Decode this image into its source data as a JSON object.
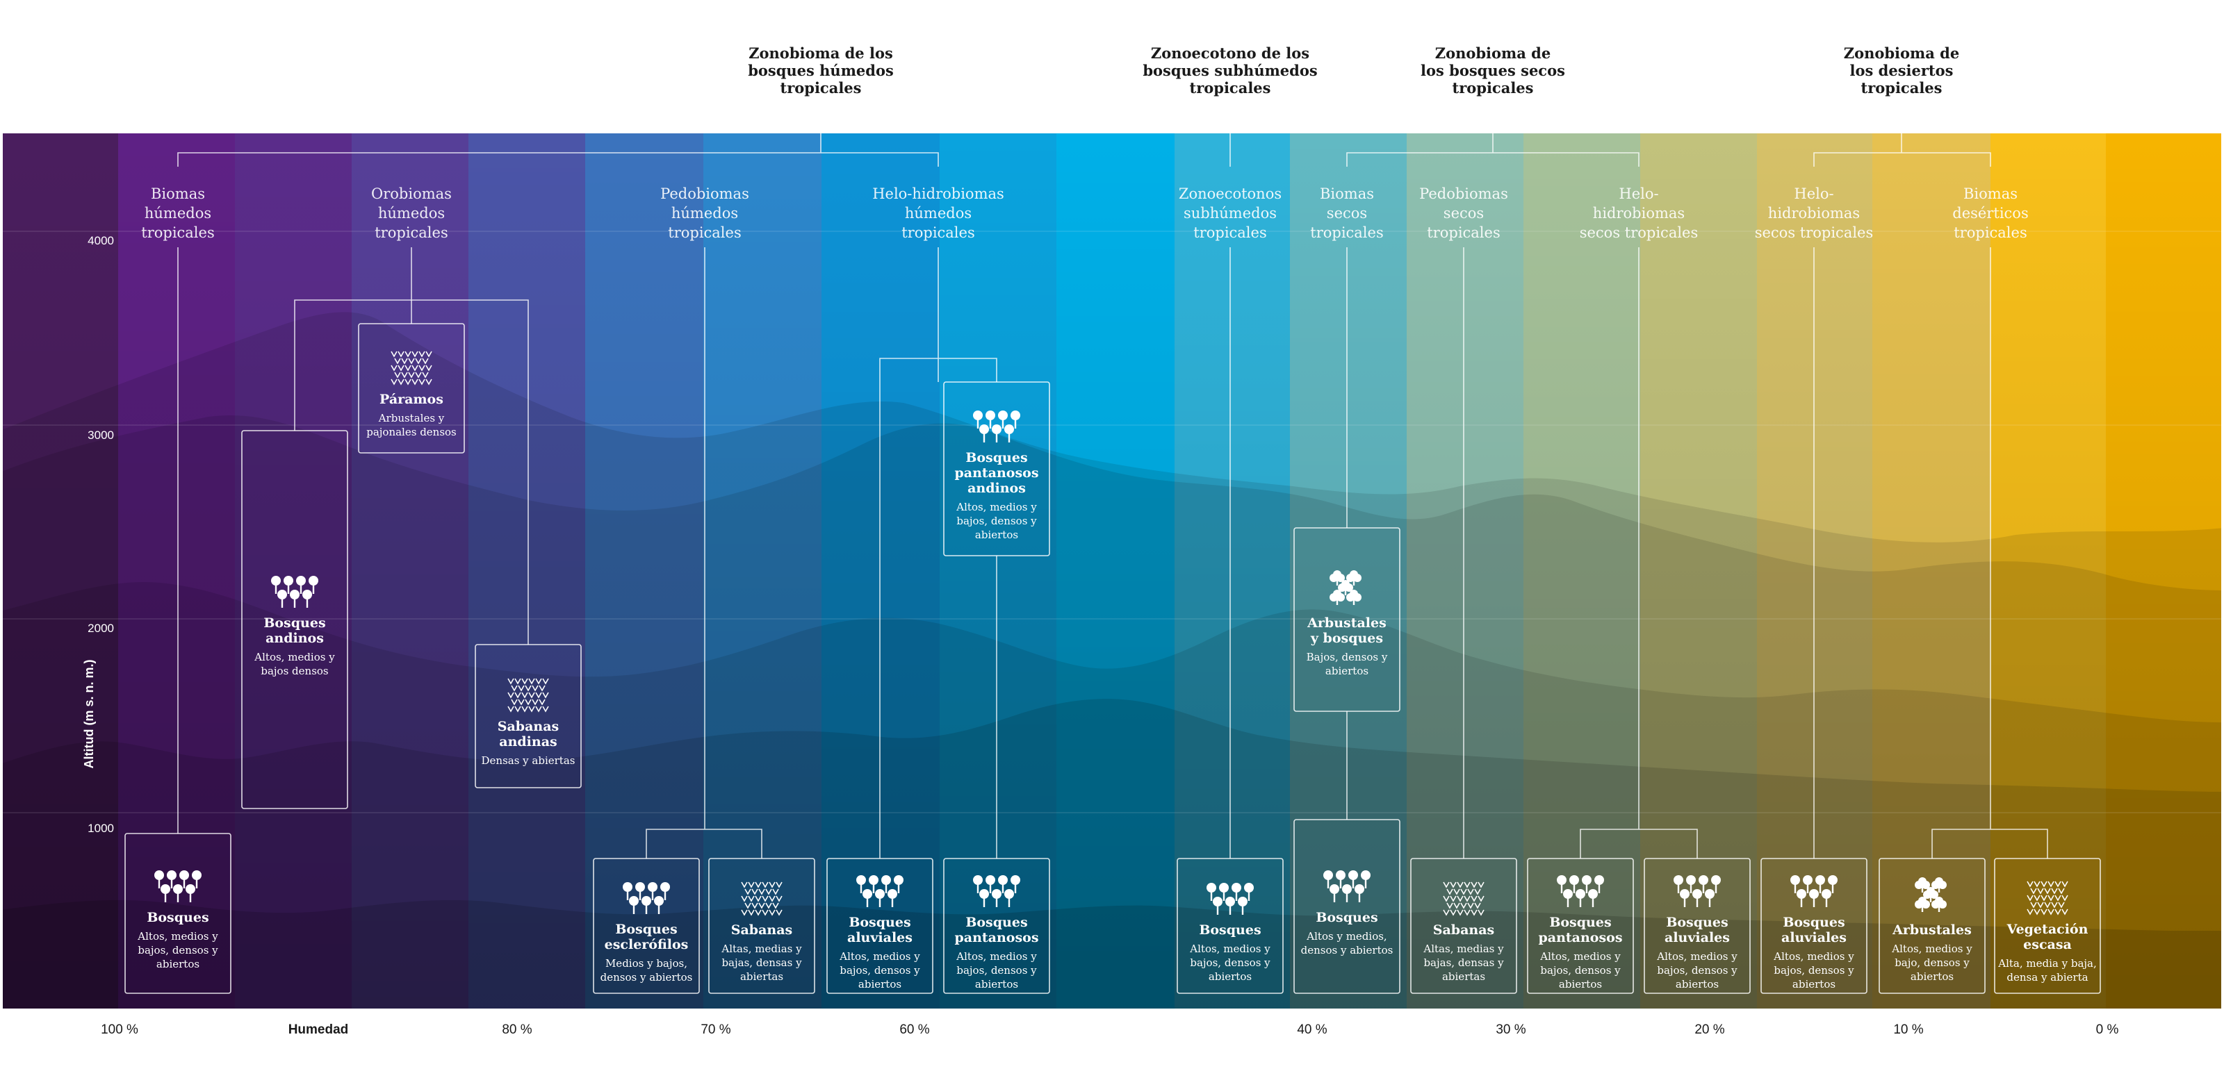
{
  "zonobiomas": [
    {
      "lines": [
        "Zonobioma de los",
        "bosques húmedos",
        "tropicales"
      ]
    },
    {
      "lines": [
        "Zonoecotono de los",
        "bosques subhúmedos",
        "tropicales"
      ]
    },
    {
      "lines": [
        "Zonobioma de",
        "los bosques secos",
        "tropicales"
      ]
    },
    {
      "lines": [
        "Zonobioma de",
        "los desiertos",
        "tropicales"
      ]
    }
  ],
  "biomas": [
    {
      "lines": [
        "Biomas",
        "húmedos",
        "tropicales"
      ]
    },
    {
      "lines": [
        "Orobiomas",
        "húmedos",
        "tropicales"
      ]
    },
    {
      "lines": [
        "Pedobiomas",
        "húmedos",
        "tropicales"
      ]
    },
    {
      "lines": [
        "Helo-hidrobiomas",
        "húmedos",
        "tropicales"
      ]
    },
    {
      "lines": [
        "Zonoecotonos",
        "subhúmedos",
        "tropicales"
      ]
    },
    {
      "lines": [
        "Biomas",
        "secos",
        "tropicales"
      ]
    },
    {
      "lines": [
        "Pedobiomas",
        "secos",
        "tropicales"
      ]
    },
    {
      "lines": [
        "Helo-",
        "hidrobiomas",
        "secos tropicales"
      ]
    },
    {
      "lines": [
        "Helo-",
        "hidrobiomas",
        "secos tropicales"
      ]
    },
    {
      "lines": [
        "Biomas",
        "desérticos",
        "tropicales"
      ]
    }
  ],
  "vegetation": [
    {
      "icon": "tree-icon",
      "title": [
        "Bosques"
      ],
      "desc": [
        "Altos, medios y",
        "bajos, densos y",
        "abiertos"
      ]
    },
    {
      "icon": "tree-icon",
      "title": [
        "Bosques",
        "andinos"
      ],
      "desc": [
        "Altos, medios y",
        "bajos densos"
      ]
    },
    {
      "icon": "grass-icon",
      "title": [
        "Páramos"
      ],
      "desc": [
        "Arbustales y",
        "pajonales densos"
      ]
    },
    {
      "icon": "grass-icon",
      "title": [
        "Sabanas",
        "andinas"
      ],
      "desc": [
        "Densas y abiertas"
      ]
    },
    {
      "icon": "tree-icon",
      "title": [
        "Bosques",
        "esclerófilos"
      ],
      "desc": [
        "Medios y bajos,",
        "densos y abiertos"
      ]
    },
    {
      "icon": "grass-icon",
      "title": [
        "Sabanas"
      ],
      "desc": [
        "Altas, medias y",
        "bajas, densas y",
        "abiertas"
      ]
    },
    {
      "icon": "tree-icon",
      "title": [
        "Bosques",
        "aluviales"
      ],
      "desc": [
        "Altos, medios y",
        "bajos, densos y",
        "abiertos"
      ]
    },
    {
      "icon": "tree-icon",
      "title": [
        "Bosques",
        "pantanosos"
      ],
      "desc": [
        "Altos, medios y",
        "bajos, densos y",
        "abiertos"
      ]
    },
    {
      "icon": "tree-icon",
      "title": [
        "Bosques",
        "pantanosos",
        "andinos"
      ],
      "desc": [
        "Altos, medios y",
        "bajos, densos y",
        "abiertos"
      ]
    },
    {
      "icon": "tree-icon",
      "title": [
        "Bosques"
      ],
      "desc": [
        "Altos, medios y",
        "bajos, densos y",
        "abiertos"
      ]
    },
    {
      "icon": "shrub-icon",
      "title": [
        "Arbustales",
        "y bosques"
      ],
      "desc": [
        "Bajos, densos y",
        "abiertos"
      ]
    },
    {
      "icon": "tree-icon",
      "title": [
        "Bosques"
      ],
      "desc": [
        "Altos y medios,",
        "densos y abiertos"
      ]
    },
    {
      "icon": "grass-icon",
      "title": [
        "Sabanas"
      ],
      "desc": [
        "Altas, medias y",
        "bajas, densas y",
        "abiertas"
      ]
    },
    {
      "icon": "tree-icon",
      "title": [
        "Bosques",
        "pantanosos"
      ],
      "desc": [
        "Altos, medios y",
        "bajos, densos y",
        "abiertos"
      ]
    },
    {
      "icon": "tree-icon",
      "title": [
        "Bosques",
        "aluviales"
      ],
      "desc": [
        "Altos, medios y",
        "bajos, densos y",
        "abiertos"
      ]
    },
    {
      "icon": "tree-icon",
      "title": [
        "Bosques",
        "aluviales"
      ],
      "desc": [
        "Altos, medios y",
        "bajos, densos y",
        "abiertos"
      ]
    },
    {
      "icon": "shrub-icon",
      "title": [
        "Arbustales"
      ],
      "desc": [
        "Altos, medios y",
        "bajo, densos y",
        "abiertos"
      ]
    },
    {
      "icon": "grass-icon",
      "title": [
        "Vegetación",
        "escasa"
      ],
      "desc": [
        "Alta, media y baja,",
        "densa y abierta"
      ]
    }
  ],
  "altitude_axis": {
    "label": "Altitud (m s. n. m.)",
    "ticks": [
      "1000",
      "2000",
      "3000",
      "4000"
    ]
  },
  "humidity_axis": {
    "label": "Humedad",
    "ticks": [
      "100 %",
      "80 %",
      "70 %",
      "60 %",
      "40 %",
      "30 %",
      "20 %",
      "10 %",
      "0 %"
    ]
  },
  "colors": {
    "bands": [
      "#4a1e5e",
      "#5e2185",
      "#5a2c8a",
      "#563f98",
      "#4b55a8",
      "#3b73bd",
      "#2d87cc",
      "#0d93d6",
      "#0aa3de",
      "#00b0e8",
      "#2fb3da",
      "#62b9c3",
      "#8ec0b0",
      "#a6c29a",
      "#c2c27c",
      "#d6c168",
      "#e6c150",
      "#f8c01a",
      "#f6b400"
    ],
    "text_dark": "#1a1a1a"
  }
}
